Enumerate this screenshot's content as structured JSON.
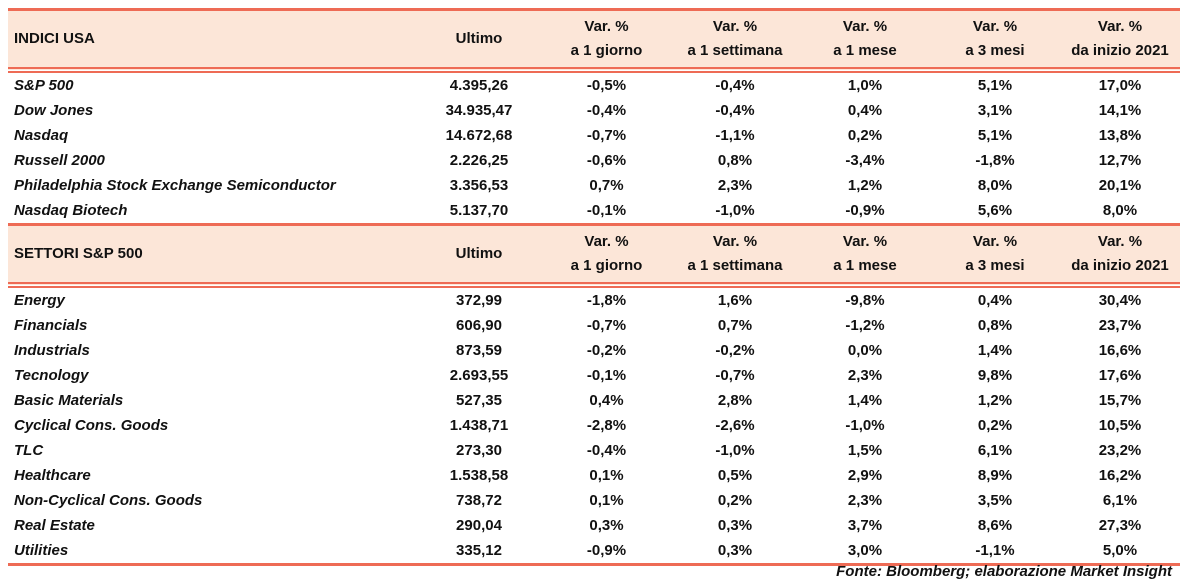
{
  "colors": {
    "header_bg": "#FCE6D8",
    "border": "#EE6B55"
  },
  "columns": [
    {
      "l1": "Ultimo",
      "l2": ""
    },
    {
      "l1": "Var. %",
      "l2": "a 1 giorno"
    },
    {
      "l1": "Var. %",
      "l2": "a 1 settimana"
    },
    {
      "l1": "Var. %",
      "l2": "a 1 mese"
    },
    {
      "l1": "Var. %",
      "l2": "a 3 mesi"
    },
    {
      "l1": "Var. %",
      "l2": "da inizio 2021"
    }
  ],
  "sections": [
    {
      "title": "INDICI USA",
      "rows": [
        [
          "S&P 500",
          "4.395,26",
          "-0,5%",
          "-0,4%",
          "1,0%",
          "5,1%",
          "17,0%"
        ],
        [
          "Dow Jones",
          "34.935,47",
          "-0,4%",
          "-0,4%",
          "0,4%",
          "3,1%",
          "14,1%"
        ],
        [
          "Nasdaq",
          "14.672,68",
          "-0,7%",
          "-1,1%",
          "0,2%",
          "5,1%",
          "13,8%"
        ],
        [
          "Russell 2000",
          "2.226,25",
          "-0,6%",
          "0,8%",
          "-3,4%",
          "-1,8%",
          "12,7%"
        ],
        [
          "Philadelphia Stock Exchange Semiconductor",
          "3.356,53",
          "0,7%",
          "2,3%",
          "1,2%",
          "8,0%",
          "20,1%"
        ],
        [
          "Nasdaq Biotech",
          "5.137,70",
          "-0,1%",
          "-1,0%",
          "-0,9%",
          "5,6%",
          "8,0%"
        ]
      ]
    },
    {
      "title": "SETTORI S&P 500",
      "rows": [
        [
          "Energy",
          "372,99",
          "-1,8%",
          "1,6%",
          "-9,8%",
          "0,4%",
          "30,4%"
        ],
        [
          "Financials",
          "606,90",
          "-0,7%",
          "0,7%",
          "-1,2%",
          "0,8%",
          "23,7%"
        ],
        [
          "Industrials",
          "873,59",
          "-0,2%",
          "-0,2%",
          "0,0%",
          "1,4%",
          "16,6%"
        ],
        [
          "Tecnology",
          "2.693,55",
          "-0,1%",
          "-0,7%",
          "2,3%",
          "9,8%",
          "17,6%"
        ],
        [
          "Basic Materials",
          "527,35",
          "0,4%",
          "2,8%",
          "1,4%",
          "1,2%",
          "15,7%"
        ],
        [
          "Cyclical Cons. Goods",
          "1.438,71",
          "-2,8%",
          "-2,6%",
          "-1,0%",
          "0,2%",
          "10,5%"
        ],
        [
          "TLC",
          "273,30",
          "-0,4%",
          "-1,0%",
          "1,5%",
          "6,1%",
          "23,2%"
        ],
        [
          "Healthcare",
          "1.538,58",
          "0,1%",
          "0,5%",
          "2,9%",
          "8,9%",
          "16,2%"
        ],
        [
          "Non-Cyclical Cons. Goods",
          "738,72",
          "0,1%",
          "0,2%",
          "2,3%",
          "3,5%",
          "6,1%"
        ],
        [
          "Real Estate",
          "290,04",
          "0,3%",
          "0,3%",
          "3,7%",
          "8,6%",
          "27,3%"
        ],
        [
          "Utilities",
          "335,12",
          "-0,9%",
          "0,3%",
          "3,0%",
          "-1,1%",
          "5,0%"
        ]
      ]
    }
  ],
  "source": "Fonte: Bloomberg; elaborazione Market Insight"
}
